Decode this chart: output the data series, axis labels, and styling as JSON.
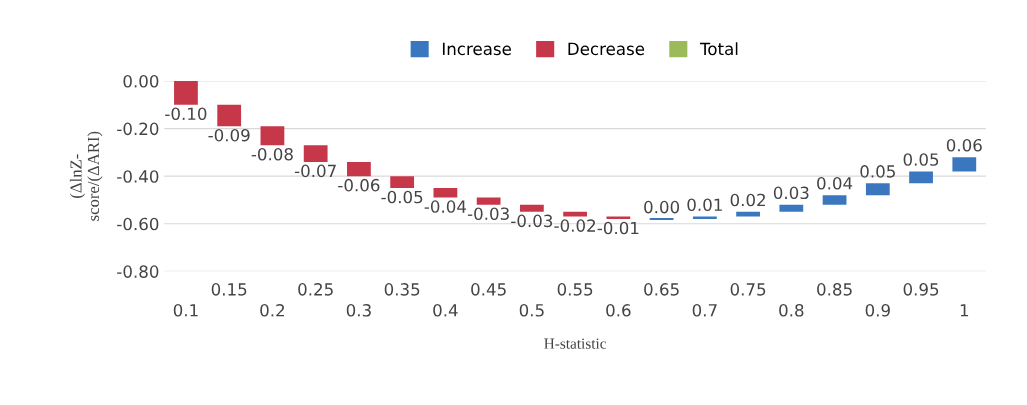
{
  "chart_data": {
    "type": "bar",
    "categories": [
      "0.1",
      "0.15",
      "0.2",
      "0.25",
      "0.3",
      "0.35",
      "0.4",
      "0.45",
      "0.5",
      "0.55",
      "0.6",
      "0.65",
      "0.7",
      "0.75",
      "0.8",
      "0.85",
      "0.9",
      "0.95",
      "1"
    ],
    "series": [
      {
        "name": "Increase",
        "color": "#3b77bf",
        "base": [
          null,
          null,
          null,
          null,
          null,
          null,
          null,
          null,
          null,
          null,
          null,
          -0.58,
          -0.58,
          -0.57,
          -0.55,
          -0.52,
          -0.48,
          -0.43,
          -0.38
        ],
        "values": [
          null,
          null,
          null,
          null,
          null,
          null,
          null,
          null,
          null,
          null,
          null,
          0.0,
          0.01,
          0.02,
          0.03,
          0.04,
          0.05,
          0.05,
          0.06
        ],
        "value_labels": [
          null,
          null,
          null,
          null,
          null,
          null,
          null,
          null,
          null,
          null,
          null,
          "0.00",
          "0.01",
          "0.02",
          "0.03",
          "0.04",
          "0.05",
          "0.05",
          "0.06"
        ]
      },
      {
        "name": "Decrease",
        "color": "#c7374a",
        "base": [
          0,
          -0.1,
          -0.19,
          -0.27,
          -0.34,
          -0.4,
          -0.45,
          -0.49,
          -0.52,
          -0.55,
          -0.57,
          null,
          null,
          null,
          null,
          null,
          null,
          null,
          null
        ],
        "values": [
          -0.1,
          -0.09,
          -0.08,
          -0.07,
          -0.06,
          -0.05,
          -0.04,
          -0.03,
          -0.03,
          -0.02,
          -0.01,
          null,
          null,
          null,
          null,
          null,
          null,
          null,
          null
        ],
        "value_labels": [
          "-0.10",
          "-0.09",
          "-0.08",
          "-0.07",
          "-0.06",
          "-0.05",
          "-0.04",
          "-0.03",
          "-0.03",
          "-0.02",
          "-0.01",
          null,
          null,
          null,
          null,
          null,
          null,
          null,
          null
        ]
      },
      {
        "name": "Total",
        "color": "#9bbb59",
        "values": [
          null,
          null,
          null,
          null,
          null,
          null,
          null,
          null,
          null,
          null,
          null,
          null,
          null,
          null,
          null,
          null,
          null,
          null,
          null
        ]
      }
    ],
    "ylim": [
      -0.8,
      0.0
    ],
    "yticks": [
      {
        "value": -0.8,
        "label": "-0.80"
      },
      {
        "value": -0.6,
        "label": "-0.60"
      },
      {
        "value": -0.4,
        "label": "-0.40"
      },
      {
        "value": -0.2,
        "label": "-0.20"
      },
      {
        "value": 0.0,
        "label": "0.00"
      }
    ],
    "xlabel": "H-statistic",
    "ylabel": "(ΔlnZ-\nscore/(ΔARI)",
    "grid": "y",
    "legend": "top"
  }
}
